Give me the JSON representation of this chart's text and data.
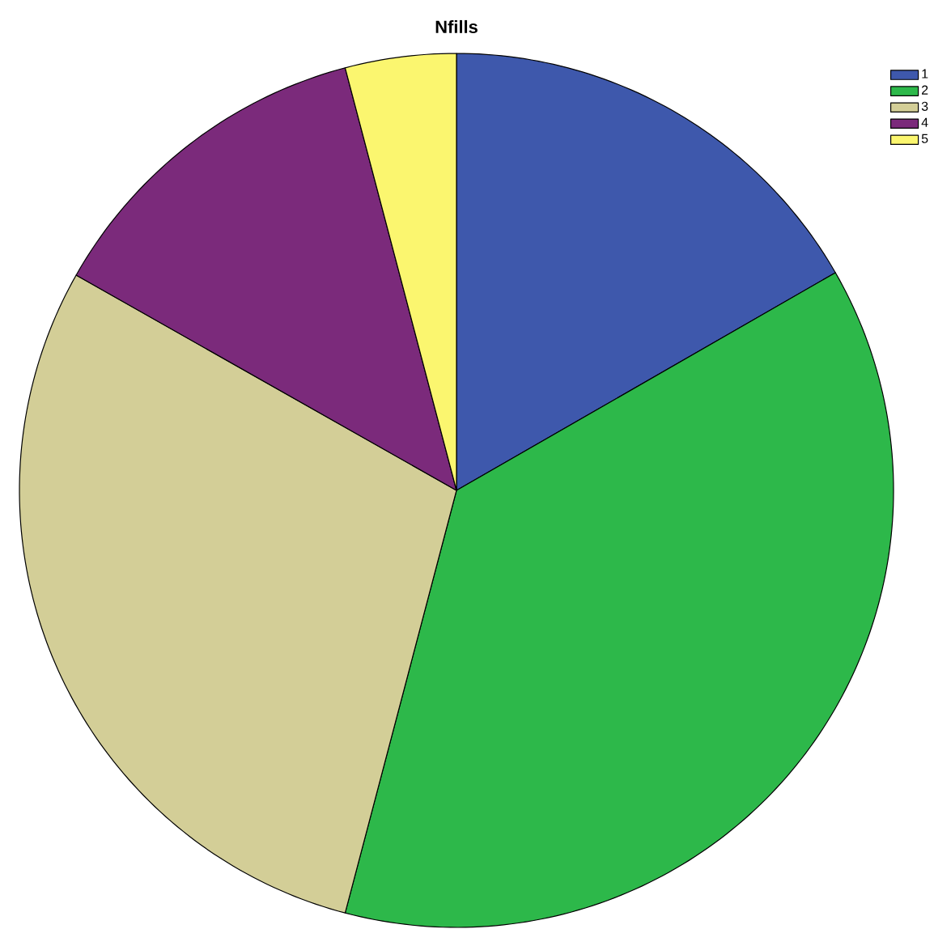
{
  "chart_data": {
    "type": "pie",
    "title": "Nfills",
    "categories": [
      "1",
      "2",
      "3",
      "4",
      "5"
    ],
    "values": [
      16.7,
      37.4,
      29.1,
      12.7,
      4.1
    ],
    "colors": [
      "#3e58ac",
      "#2db84a",
      "#d3ce97",
      "#7b2a7b",
      "#fbf66f"
    ],
    "legend": "top right"
  }
}
